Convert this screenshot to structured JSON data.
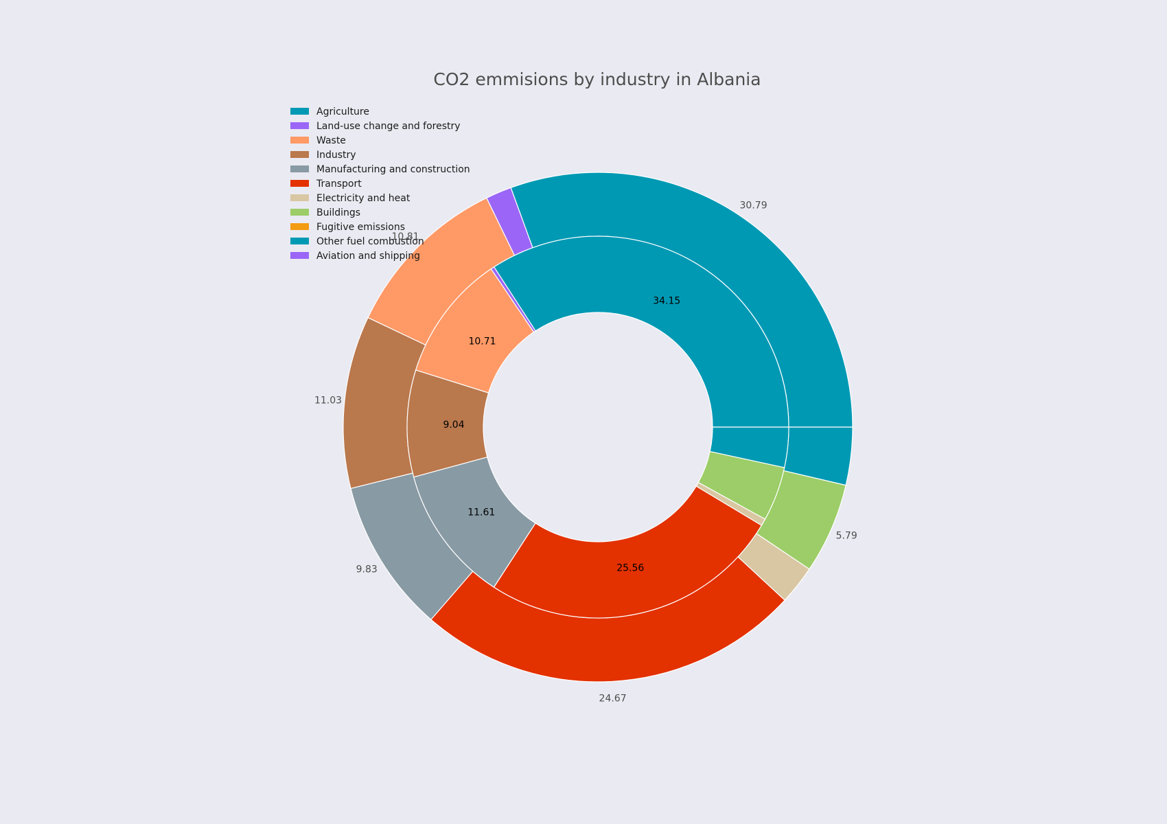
{
  "page": {
    "background": "#eaeaf2"
  },
  "chart_data": {
    "type": "pie",
    "title": "CO2 emmisions by industry in Albania",
    "categories": [
      "Agriculture",
      "Land-use change and forestry",
      "Waste",
      "Industry",
      "Manufacturing and construction",
      "Transport",
      "Electricity and heat",
      "Buildings",
      "Fugitive emissions",
      "Other fuel combustion",
      "Aviation and shipping"
    ],
    "colors": [
      "#0099b4",
      "#9b66f7",
      "#ff9966",
      "#ba784d",
      "#889aa4",
      "#e33100",
      "#d9c7a3",
      "#9ccd68",
      "#f39c12",
      "#0099b4",
      "#9b66f7"
    ],
    "series": [
      {
        "ring": "outer",
        "values": [
          30.79,
          1.66,
          10.81,
          11.03,
          9.83,
          24.67,
          2.5,
          5.79,
          0.0,
          3.69,
          0.0
        ],
        "labels_shown": [
          "30.79",
          "",
          "10.81",
          "11.03",
          "9.83",
          "24.67",
          "",
          "5.79",
          "",
          "",
          ""
        ],
        "label_color": "#4d4d4d"
      },
      {
        "ring": "inner",
        "values": [
          34.15,
          0.3,
          10.71,
          9.04,
          11.61,
          25.56,
          0.6,
          4.6,
          0.0,
          3.4,
          0.0
        ],
        "labels_shown": [
          "34.15",
          "",
          "10.71",
          "9.04",
          "11.61",
          "25.56",
          "",
          "",
          "",
          "",
          ""
        ],
        "label_color": "#000000"
      }
    ],
    "start_angle_deg": 0,
    "direction": "counterclockwise",
    "legend_position": "top-left"
  }
}
